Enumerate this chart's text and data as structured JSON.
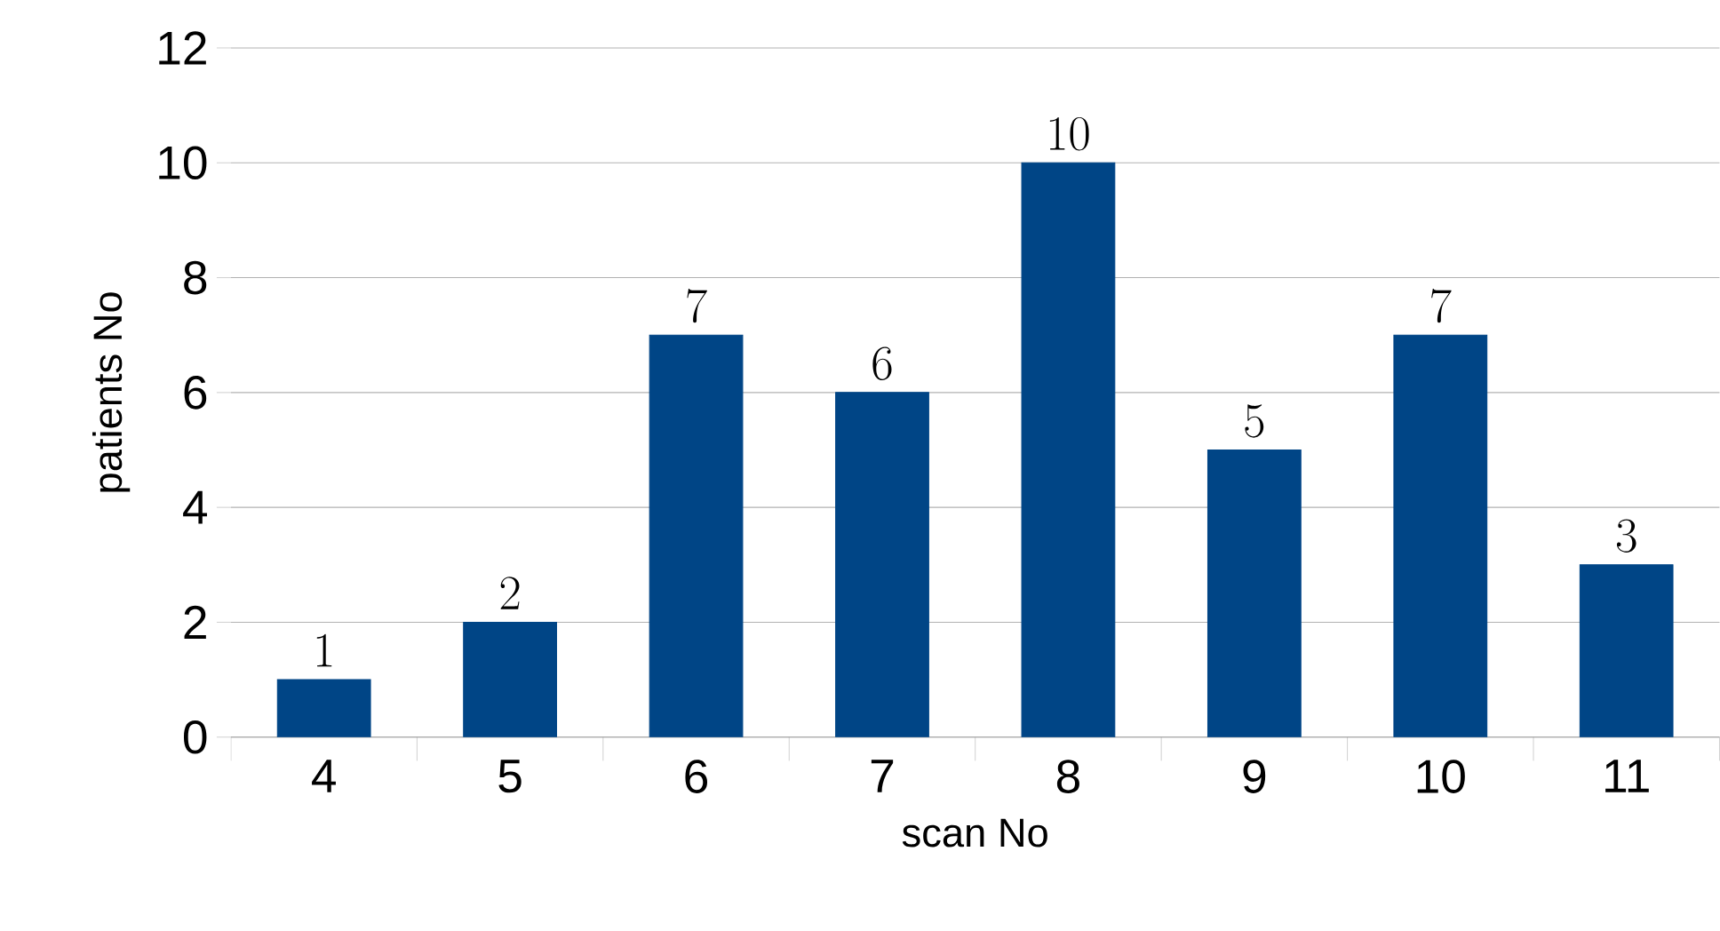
{
  "chart_data": {
    "type": "bar",
    "xlabel": "scan No",
    "ylabel": "patients No",
    "categories": [
      "4",
      "5",
      "6",
      "7",
      "8",
      "9",
      "10",
      "11"
    ],
    "values": [
      1,
      2,
      7,
      6,
      10,
      5,
      7,
      3
    ],
    "color": "#004586",
    "ylim": [
      0,
      12
    ],
    "yticks": [
      0,
      2,
      4,
      6,
      8,
      10,
      12
    ],
    "grid": "y",
    "data_labels": true
  }
}
